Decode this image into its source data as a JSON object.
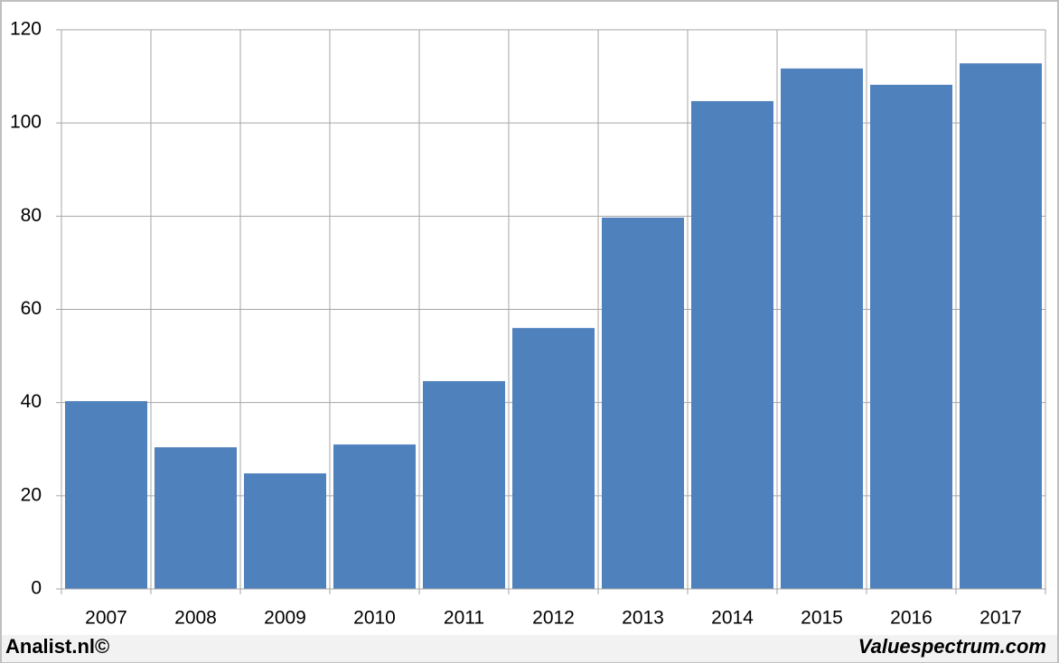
{
  "chart_data": {
    "type": "bar",
    "categories": [
      "2007",
      "2008",
      "2009",
      "2010",
      "2011",
      "2012",
      "2013",
      "2014",
      "2015",
      "2016",
      "2017"
    ],
    "values": [
      40.3,
      30.4,
      24.8,
      31.0,
      44.6,
      56.0,
      79.7,
      104.7,
      111.7,
      108.2,
      112.8
    ],
    "color": "#4f81bd",
    "ylim": [
      0,
      120
    ],
    "yticks": [
      0,
      20,
      40,
      60,
      80,
      100,
      120
    ],
    "grid": true
  },
  "credits": {
    "left": "Analist.nl©",
    "right": "Valuespectrum.com"
  }
}
